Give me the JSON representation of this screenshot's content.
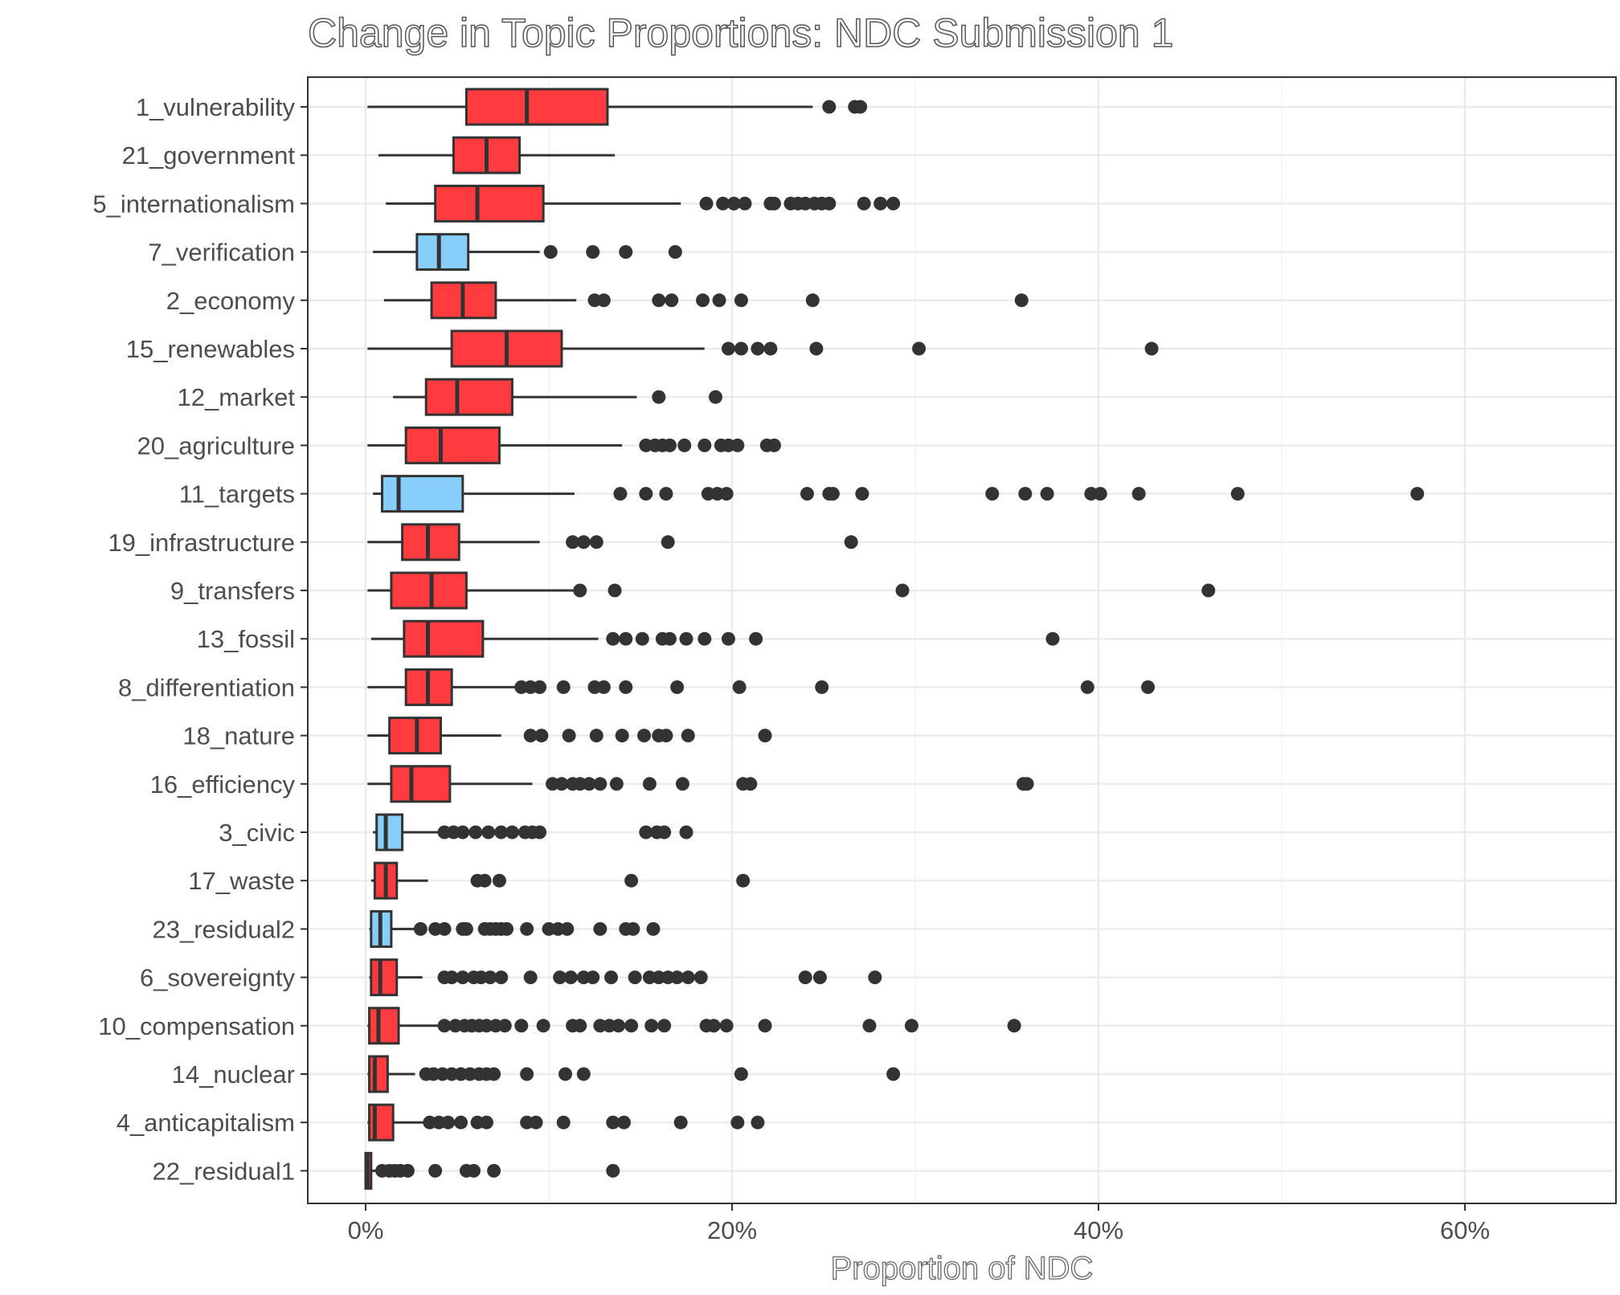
{
  "chart_data": {
    "type": "boxplot",
    "title": "Change in Topic Proportions: NDC Submission 1",
    "xlabel": "Proportion of NDC",
    "ylabel": "",
    "xlim": [
      -0.03,
      0.68
    ],
    "x_ticks": [
      0,
      0.2,
      0.4,
      0.6
    ],
    "x_tick_labels": [
      "0%",
      "20%",
      "40%",
      "60%"
    ],
    "grid": true,
    "colors": {
      "increase": "#ff3b3f",
      "decrease": "#87cefa",
      "outline": "#333333"
    },
    "categories": [
      {
        "label": "1_vulnerability",
        "fill": "increase",
        "whisker_low": 0.001,
        "q1": 0.055,
        "median": 0.088,
        "q3": 0.132,
        "whisker_high": 0.244,
        "outliers": [
          0.253,
          0.267,
          0.27
        ]
      },
      {
        "label": "21_government",
        "fill": "increase",
        "whisker_low": 0.007,
        "q1": 0.048,
        "median": 0.066,
        "q3": 0.084,
        "whisker_high": 0.136,
        "outliers": []
      },
      {
        "label": "5_internationalism",
        "fill": "increase",
        "whisker_low": 0.011,
        "q1": 0.038,
        "median": 0.061,
        "q3": 0.097,
        "whisker_high": 0.172,
        "outliers": [
          0.186,
          0.195,
          0.201,
          0.207,
          0.221,
          0.223,
          0.232,
          0.236,
          0.24,
          0.245,
          0.249,
          0.253,
          0.272,
          0.281,
          0.288
        ]
      },
      {
        "label": "7_verification",
        "fill": "decrease",
        "whisker_low": 0.004,
        "q1": 0.028,
        "median": 0.04,
        "q3": 0.056,
        "whisker_high": 0.095,
        "outliers": [
          0.101,
          0.124,
          0.142,
          0.169
        ]
      },
      {
        "label": "2_economy",
        "fill": "increase",
        "whisker_low": 0.01,
        "q1": 0.036,
        "median": 0.053,
        "q3": 0.071,
        "whisker_high": 0.115,
        "outliers": [
          0.125,
          0.13,
          0.16,
          0.167,
          0.184,
          0.193,
          0.205,
          0.244,
          0.358
        ]
      },
      {
        "label": "15_renewables",
        "fill": "increase",
        "whisker_low": 0.001,
        "q1": 0.047,
        "median": 0.077,
        "q3": 0.107,
        "whisker_high": 0.185,
        "outliers": [
          0.198,
          0.205,
          0.214,
          0.221,
          0.246,
          0.302,
          0.429
        ]
      },
      {
        "label": "12_market",
        "fill": "increase",
        "whisker_low": 0.015,
        "q1": 0.033,
        "median": 0.05,
        "q3": 0.08,
        "whisker_high": 0.148,
        "outliers": [
          0.16,
          0.191
        ]
      },
      {
        "label": "20_agriculture",
        "fill": "increase",
        "whisker_low": 0.001,
        "q1": 0.022,
        "median": 0.041,
        "q3": 0.073,
        "whisker_high": 0.14,
        "outliers": [
          0.153,
          0.158,
          0.162,
          0.166,
          0.174,
          0.185,
          0.194,
          0.198,
          0.203,
          0.219,
          0.223
        ]
      },
      {
        "label": "11_targets",
        "fill": "decrease",
        "whisker_low": 0.004,
        "q1": 0.009,
        "median": 0.018,
        "q3": 0.053,
        "whisker_high": 0.114,
        "outliers": [
          0.139,
          0.153,
          0.164,
          0.187,
          0.192,
          0.197,
          0.241,
          0.253,
          0.255,
          0.271,
          0.342,
          0.36,
          0.372,
          0.396,
          0.401,
          0.422,
          0.476,
          0.574
        ]
      },
      {
        "label": "19_infrastructure",
        "fill": "increase",
        "whisker_low": 0.001,
        "q1": 0.02,
        "median": 0.034,
        "q3": 0.051,
        "whisker_high": 0.095,
        "outliers": [
          0.113,
          0.119,
          0.126,
          0.165,
          0.265
        ]
      },
      {
        "label": "9_transfers",
        "fill": "increase",
        "whisker_low": 0.001,
        "q1": 0.014,
        "median": 0.036,
        "q3": 0.055,
        "whisker_high": 0.116,
        "outliers": [
          0.117,
          0.136,
          0.293,
          0.46
        ]
      },
      {
        "label": "13_fossil",
        "fill": "increase",
        "whisker_low": 0.003,
        "q1": 0.021,
        "median": 0.034,
        "q3": 0.064,
        "whisker_high": 0.127,
        "outliers": [
          0.135,
          0.142,
          0.151,
          0.162,
          0.166,
          0.175,
          0.185,
          0.198,
          0.213,
          0.375
        ]
      },
      {
        "label": "8_differentiation",
        "fill": "increase",
        "whisker_low": 0.001,
        "q1": 0.022,
        "median": 0.034,
        "q3": 0.047,
        "whisker_high": 0.083,
        "outliers": [
          0.085,
          0.09,
          0.095,
          0.108,
          0.125,
          0.13,
          0.142,
          0.17,
          0.204,
          0.249,
          0.394,
          0.427
        ]
      },
      {
        "label": "18_nature",
        "fill": "increase",
        "whisker_low": 0.001,
        "q1": 0.013,
        "median": 0.028,
        "q3": 0.041,
        "whisker_high": 0.074,
        "outliers": [
          0.09,
          0.096,
          0.111,
          0.126,
          0.14,
          0.152,
          0.16,
          0.164,
          0.176,
          0.218
        ]
      },
      {
        "label": "16_efficiency",
        "fill": "increase",
        "whisker_low": 0.001,
        "q1": 0.014,
        "median": 0.025,
        "q3": 0.046,
        "whisker_high": 0.091,
        "outliers": [
          0.102,
          0.107,
          0.113,
          0.117,
          0.122,
          0.128,
          0.137,
          0.155,
          0.173,
          0.206,
          0.21,
          0.359,
          0.361
        ]
      },
      {
        "label": "3_civic",
        "fill": "decrease",
        "whisker_low": 0.004,
        "q1": 0.006,
        "median": 0.011,
        "q3": 0.02,
        "whisker_high": 0.042,
        "outliers": [
          0.043,
          0.048,
          0.053,
          0.06,
          0.067,
          0.074,
          0.08,
          0.087,
          0.091,
          0.095,
          0.153,
          0.159,
          0.163,
          0.175
        ]
      },
      {
        "label": "17_waste",
        "fill": "increase",
        "whisker_low": 0.003,
        "q1": 0.005,
        "median": 0.011,
        "q3": 0.017,
        "whisker_high": 0.034,
        "outliers": [
          0.061,
          0.065,
          0.073,
          0.145,
          0.206
        ]
      },
      {
        "label": "23_residual2",
        "fill": "decrease",
        "whisker_low": 0.002,
        "q1": 0.003,
        "median": 0.008,
        "q3": 0.014,
        "whisker_high": 0.029,
        "outliers": [
          0.03,
          0.038,
          0.043,
          0.053,
          0.055,
          0.065,
          0.068,
          0.071,
          0.074,
          0.077,
          0.088,
          0.1,
          0.105,
          0.11,
          0.128,
          0.142,
          0.146,
          0.157
        ]
      },
      {
        "label": "6_sovereignty",
        "fill": "increase",
        "whisker_low": 0.002,
        "q1": 0.003,
        "median": 0.008,
        "q3": 0.017,
        "whisker_high": 0.031,
        "outliers": [
          0.043,
          0.047,
          0.053,
          0.059,
          0.063,
          0.068,
          0.074,
          0.09,
          0.106,
          0.112,
          0.119,
          0.124,
          0.134,
          0.147,
          0.155,
          0.16,
          0.165,
          0.17,
          0.176,
          0.183,
          0.24,
          0.248,
          0.278
        ]
      },
      {
        "label": "10_compensation",
        "fill": "increase",
        "whisker_low": 0.001,
        "q1": 0.002,
        "median": 0.007,
        "q3": 0.018,
        "whisker_high": 0.041,
        "outliers": [
          0.043,
          0.049,
          0.054,
          0.058,
          0.062,
          0.066,
          0.071,
          0.076,
          0.085,
          0.097,
          0.113,
          0.117,
          0.128,
          0.133,
          0.138,
          0.145,
          0.156,
          0.163,
          0.186,
          0.19,
          0.197,
          0.218,
          0.275,
          0.298,
          0.354
        ]
      },
      {
        "label": "14_nuclear",
        "fill": "increase",
        "whisker_low": 0.001,
        "q1": 0.002,
        "median": 0.005,
        "q3": 0.012,
        "whisker_high": 0.027,
        "outliers": [
          0.033,
          0.037,
          0.042,
          0.047,
          0.052,
          0.057,
          0.062,
          0.066,
          0.07,
          0.088,
          0.109,
          0.119,
          0.205,
          0.288
        ]
      },
      {
        "label": "4_anticapitalism",
        "fill": "increase",
        "whisker_low": 0.001,
        "q1": 0.002,
        "median": 0.005,
        "q3": 0.015,
        "whisker_high": 0.032,
        "outliers": [
          0.035,
          0.04,
          0.045,
          0.052,
          0.061,
          0.066,
          0.088,
          0.093,
          0.108,
          0.135,
          0.141,
          0.172,
          0.203,
          0.214
        ]
      },
      {
        "label": "22_residual1",
        "fill": "increase",
        "whisker_low": 0.0,
        "q1": 0.0,
        "median": 0.001,
        "q3": 0.003,
        "whisker_high": 0.006,
        "outliers": [
          0.009,
          0.013,
          0.016,
          0.019,
          0.023,
          0.038,
          0.055,
          0.059,
          0.07,
          0.135
        ]
      }
    ]
  }
}
